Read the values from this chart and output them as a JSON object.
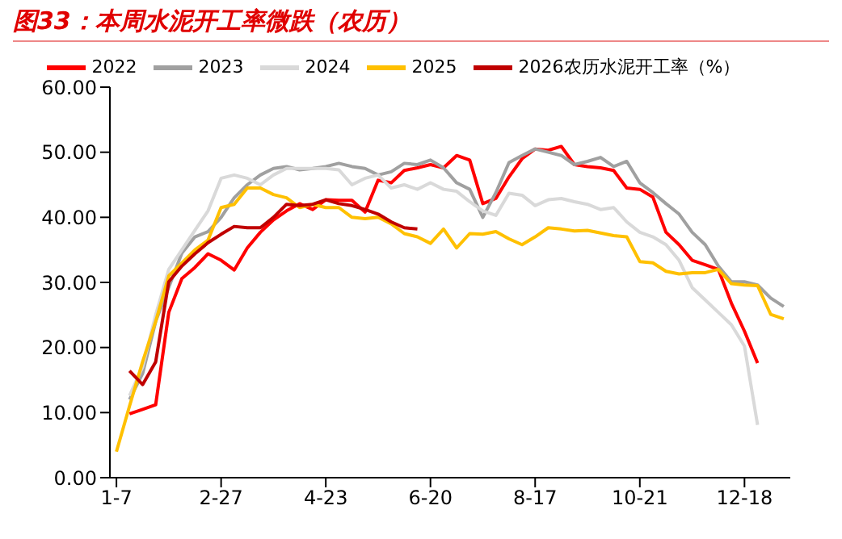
{
  "chart_data": {
    "type": "line",
    "title": "图33：本周水泥开工率微跌（农历）",
    "categories": [
      "1-7",
      null,
      null,
      null,
      null,
      null,
      null,
      null,
      "2-27",
      null,
      null,
      null,
      null,
      null,
      null,
      null,
      "4-23",
      null,
      null,
      null,
      null,
      null,
      null,
      null,
      "6-20",
      null,
      null,
      null,
      null,
      null,
      null,
      null,
      "8-17",
      null,
      null,
      null,
      null,
      null,
      null,
      null,
      "10-21",
      null,
      null,
      null,
      null,
      null,
      null,
      null,
      "12-18",
      null,
      null,
      null
    ],
    "series": [
      {
        "name": "2022",
        "color": "#ff0000",
        "values": [
          null,
          9.8,
          10.5,
          11.2,
          25.4,
          30.6,
          32.3,
          34.4,
          33.4,
          31.9,
          35.3,
          37.7,
          39.6,
          41,
          42.1,
          41.2,
          42.7,
          42.6,
          42.6,
          40.8,
          45.7,
          45.3,
          47.2,
          47.6,
          48.1,
          47.6,
          49.5,
          48.8,
          42.1,
          42.9,
          46.2,
          49,
          50.5,
          50.3,
          50.9,
          48.1,
          47.8,
          47.6,
          47.2,
          44.5,
          44.3,
          43.1,
          37.7,
          35.8,
          33.4,
          32.7,
          32,
          26.8,
          22.5,
          17.6,
          null,
          null
        ]
      },
      {
        "name": "2023",
        "color": "#a0a0a0",
        "values": [
          null,
          12,
          16,
          24,
          null,
          34.5,
          37,
          37.8,
          40,
          43,
          45,
          46.5,
          47.5,
          47.8,
          47.3,
          47.5,
          47.8,
          48.3,
          47.8,
          47.5,
          46.5,
          47,
          48.3,
          48.1,
          48.8,
          47.6,
          45.3,
          44.3,
          40,
          43.8,
          48.4,
          49.5,
          50.5,
          50,
          49.5,
          48.1,
          48.6,
          49.2,
          47.8,
          48.6,
          45.3,
          43.8,
          42.1,
          40.5,
          37.7,
          35.8,
          32.5,
          30.1,
          30.1,
          29.6,
          27.6,
          26.3
        ]
      },
      {
        "name": "2024",
        "color": "#d9d9d9",
        "values": [
          null,
          12.6,
          17,
          25,
          32,
          35,
          38,
          41,
          46,
          46.5,
          46,
          45,
          46.5,
          47.5,
          47.5,
          47.5,
          47.5,
          47.3,
          45,
          46,
          46.5,
          44.5,
          45,
          44.3,
          45.3,
          44.3,
          44,
          42.4,
          41,
          40.3,
          43.7,
          43.4,
          41.8,
          42.7,
          42.9,
          42.4,
          42,
          41.2,
          41.5,
          39.3,
          37.7,
          37,
          35.8,
          33.4,
          29.2,
          27.3,
          25.4,
          23.5,
          20.2,
          8.1,
          null,
          null
        ]
      },
      {
        "name": "2025",
        "color": "#ffc000",
        "values": [
          4,
          11,
          17.8,
          24,
          31,
          33,
          35,
          36.5,
          41.5,
          42,
          44.5,
          44.5,
          43.5,
          43,
          41.5,
          42,
          41.5,
          41.5,
          40,
          39.8,
          40,
          39,
          37.5,
          37,
          36,
          38.2,
          35.3,
          37.5,
          37.4,
          37.8,
          36.7,
          35.8,
          37,
          38.4,
          38.2,
          37.9,
          38,
          37.6,
          37.2,
          37,
          33.2,
          33,
          31.7,
          31.3,
          31.5,
          31.5,
          32,
          29.8,
          29.6,
          29.5,
          25.1,
          24.4
        ]
      },
      {
        "name": "2026农历水泥开工率（%）",
        "color": "#c00000",
        "values": [
          null,
          16.4,
          14.3,
          17.8,
          30.1,
          32.5,
          34.4,
          36.1,
          37.4,
          38.6,
          38.4,
          38.4,
          40,
          42,
          41.8,
          42,
          42.7,
          42.1,
          41.8,
          41.2,
          40.5,
          39.3,
          38.4,
          38.2,
          null,
          null,
          null,
          null,
          null,
          null,
          null,
          null,
          null,
          null,
          null,
          null,
          null,
          null,
          null,
          null,
          null,
          null,
          null,
          null,
          null,
          null,
          null,
          null,
          null,
          null,
          null,
          null
        ]
      }
    ],
    "ylim": [
      0,
      60
    ],
    "yticks": [
      {
        "value": 0,
        "label": "0.00"
      },
      {
        "value": 10,
        "label": "10.00"
      },
      {
        "value": 20,
        "label": "20.00"
      },
      {
        "value": 30,
        "label": "30.00"
      },
      {
        "value": 40,
        "label": "40.00"
      },
      {
        "value": 50,
        "label": "50.00"
      },
      {
        "value": 60,
        "label": "60.00"
      }
    ],
    "grid": false,
    "legend": "top",
    "marker": "none",
    "line_style": "solid"
  }
}
